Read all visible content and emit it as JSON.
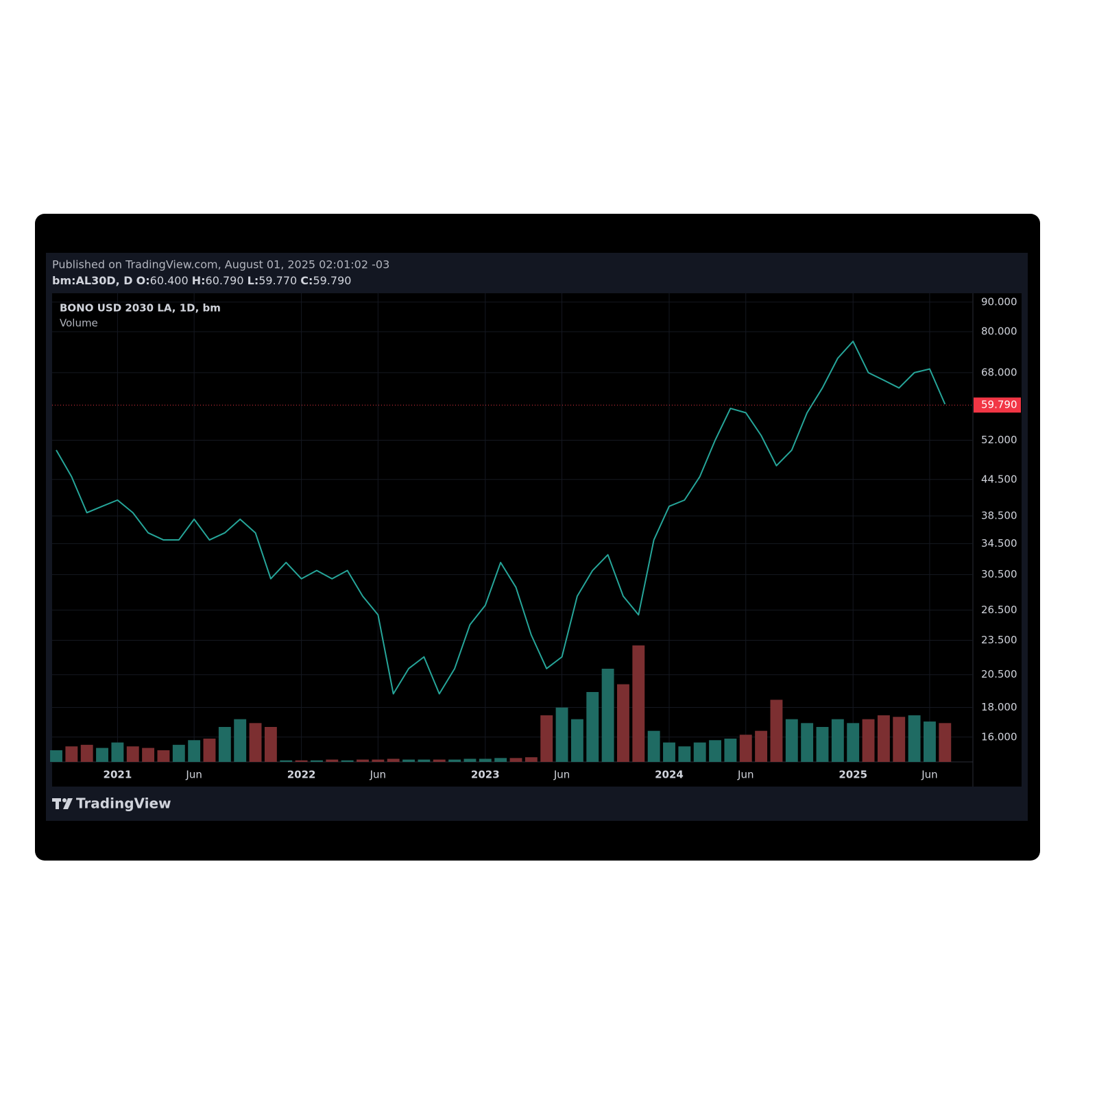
{
  "header": {
    "published": "Published on TradingView.com, August 01, 2025 02:01:02 -03",
    "symbol": "bm:AL30D, D",
    "ohlc": [
      {
        "key": "O:",
        "value": "60.400"
      },
      {
        "key": "H:",
        "value": "60.790"
      },
      {
        "key": "L:",
        "value": "59.770"
      },
      {
        "key": "C:",
        "value": "59.790"
      }
    ]
  },
  "chart_data": {
    "type": "line",
    "title": "BONO USD 2030 LA, 1D, bm",
    "x": [
      "2020-09",
      "2020-10",
      "2020-11",
      "2020-12",
      "2021-01",
      "2021-02",
      "2021-03",
      "2021-04",
      "2021-05",
      "2021-06",
      "2021-07",
      "2021-08",
      "2021-09",
      "2021-10",
      "2021-11",
      "2021-12",
      "2022-01",
      "2022-02",
      "2022-03",
      "2022-04",
      "2022-05",
      "2022-06",
      "2022-07",
      "2022-08",
      "2022-09",
      "2022-10",
      "2022-11",
      "2022-12",
      "2023-01",
      "2023-02",
      "2023-03",
      "2023-04",
      "2023-05",
      "2023-06",
      "2023-07",
      "2023-08",
      "2023-09",
      "2023-10",
      "2023-11",
      "2023-12",
      "2024-01",
      "2024-02",
      "2024-03",
      "2024-04",
      "2024-05",
      "2024-06",
      "2024-07",
      "2024-08",
      "2024-09",
      "2024-10",
      "2024-11",
      "2024-12",
      "2025-01",
      "2025-02",
      "2025-03",
      "2025-04",
      "2025-05",
      "2025-06",
      "2025-07"
    ],
    "values": [
      50,
      45,
      39,
      40,
      41,
      39,
      36,
      35,
      35,
      38,
      35,
      36,
      38,
      36,
      30,
      32,
      30,
      31,
      30,
      31,
      28,
      26,
      19,
      21,
      22,
      19,
      21,
      25,
      27,
      32,
      29,
      24,
      21,
      22,
      28,
      31,
      33,
      28,
      26,
      35,
      40,
      41,
      45,
      52,
      59,
      58,
      53,
      47,
      50,
      58,
      64,
      72,
      77,
      68,
      66,
      64,
      68,
      69,
      60
    ],
    "color": "#26a69a",
    "volume": {
      "name": "Volume",
      "up_color": "#1f6b63",
      "down_color": "#7c2f31",
      "values": [
        15,
        20,
        22,
        18,
        25,
        20,
        18,
        15,
        22,
        28,
        30,
        45,
        55,
        50,
        45,
        2,
        2,
        2,
        3,
        2,
        3,
        3,
        4,
        3,
        3,
        3,
        3,
        4,
        4,
        5,
        5,
        6,
        60,
        70,
        55,
        90,
        120,
        100,
        150,
        40,
        25,
        20,
        25,
        28,
        30,
        35,
        40,
        80,
        55,
        50,
        45,
        55,
        50,
        55,
        60,
        58,
        60,
        52,
        50
      ]
    },
    "log_scale": true,
    "grid": true,
    "ylim": [
      14.5,
      93.2
    ],
    "yticks": [
      {
        "value": 16,
        "label": "16.000"
      },
      {
        "value": 18,
        "label": "18.000"
      },
      {
        "value": 20.5,
        "label": "20.500"
      },
      {
        "value": 23.5,
        "label": "23.500"
      },
      {
        "value": 26.5,
        "label": "26.500"
      },
      {
        "value": 30.5,
        "label": "30.500"
      },
      {
        "value": 34.5,
        "label": "34.500"
      },
      {
        "value": 38.5,
        "label": "38.500"
      },
      {
        "value": 44.5,
        "label": "44.500"
      },
      {
        "value": 52,
        "label": "52.000"
      },
      {
        "value": 68,
        "label": "68.000"
      },
      {
        "value": 80,
        "label": "80.000"
      },
      {
        "value": 90,
        "label": "90.000"
      }
    ],
    "last_price": {
      "value": 59.79,
      "label": "59.790",
      "color": "#f23645"
    },
    "xticks": [
      {
        "value": "2021-01",
        "label": "2021"
      },
      {
        "value": "2021-06",
        "label": "Jun"
      },
      {
        "value": "2022-01",
        "label": "2022"
      },
      {
        "value": "2022-06",
        "label": "Jun"
      },
      {
        "value": "2023-01",
        "label": "2023"
      },
      {
        "value": "2023-06",
        "label": "Jun"
      },
      {
        "value": "2024-01",
        "label": "2024"
      },
      {
        "value": "2024-06",
        "label": "Jun"
      },
      {
        "value": "2025-01",
        "label": "2025"
      },
      {
        "value": "2025-06",
        "label": "Jun"
      }
    ]
  },
  "footer": {
    "brand": "TradingView"
  }
}
